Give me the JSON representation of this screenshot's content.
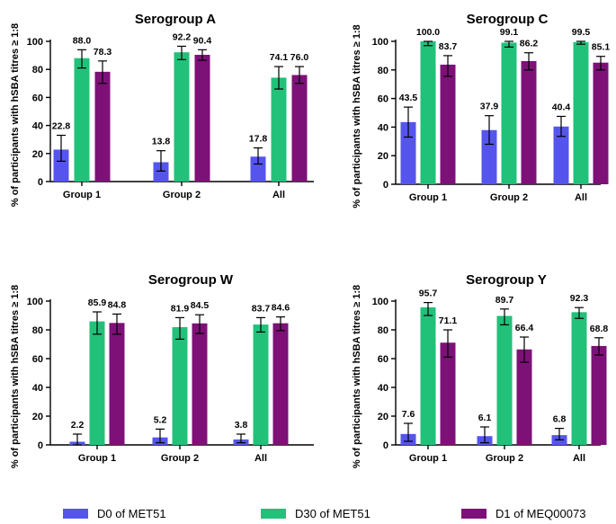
{
  "y_axis_label": "% of participants with hSBA titres ≥ 1:8",
  "legend": [
    {
      "label": "D0 of MET51",
      "color": "#5555ee"
    },
    {
      "label": "D30 of MET51",
      "color": "#22c17a"
    },
    {
      "label": "D1 of MEQ00073",
      "color": "#7d1178"
    }
  ],
  "chart_data": [
    {
      "type": "bar",
      "title": "Serogroup A",
      "categories": [
        "Group 1",
        "Group 2",
        "All"
      ],
      "ylim": [
        0,
        100
      ],
      "yticks": [
        0,
        20,
        40,
        60,
        80,
        100
      ],
      "series": [
        {
          "name": "D0 of MET51",
          "values": [
            22.8,
            13.8,
            17.8
          ],
          "labels": [
            "22.8",
            "13.8",
            "17.8"
          ],
          "err_low": [
            14.5,
            7.5,
            12.5
          ],
          "err_high": [
            33.0,
            22.0,
            24.0
          ]
        },
        {
          "name": "D30 of MET51",
          "values": [
            88.0,
            92.2,
            74.1
          ],
          "labels": [
            "88.0",
            "92.2",
            "74.1"
          ],
          "err_low": [
            81.0,
            87.0,
            66.0
          ],
          "err_high": [
            94.0,
            96.5,
            82.0
          ]
        },
        {
          "name": "D1 of MEQ00073",
          "values": [
            78.3,
            90.4,
            76.0
          ],
          "labels": [
            "78.3",
            "90.4",
            "76.0"
          ],
          "err_low": [
            70.0,
            86.5,
            70.0
          ],
          "err_high": [
            86.0,
            94.0,
            82.0
          ]
        }
      ]
    },
    {
      "type": "bar",
      "title": "Serogroup C",
      "categories": [
        "Group 1",
        "Group 2",
        "All"
      ],
      "ylim": [
        0,
        100
      ],
      "yticks": [
        0,
        20,
        40,
        60,
        80,
        100
      ],
      "series": [
        {
          "name": "D0 of MET51",
          "values": [
            43.5,
            37.9,
            40.4
          ],
          "labels": [
            "43.5",
            "37.9",
            "40.4"
          ],
          "err_low": [
            33.0,
            28.0,
            33.5
          ],
          "err_high": [
            54.0,
            48.0,
            47.5
          ]
        },
        {
          "name": "D30 of MET51",
          "values": [
            100.0,
            99.1,
            99.5
          ],
          "labels": [
            "100.0",
            "99.1",
            "99.5"
          ],
          "err_low": [
            97.0,
            96.0,
            98.0
          ],
          "err_high": [
            100.0,
            100.0,
            100.0
          ]
        },
        {
          "name": "D1 of MEQ00073",
          "values": [
            83.7,
            86.2,
            85.1
          ],
          "labels": [
            "83.7",
            "86.2",
            "85.1"
          ],
          "err_low": [
            75.5,
            80.0,
            80.0
          ],
          "err_high": [
            90.0,
            92.0,
            89.5
          ]
        }
      ]
    },
    {
      "type": "bar",
      "title": "Serogroup W",
      "categories": [
        "Group 1",
        "Group 2",
        "All"
      ],
      "ylim": [
        0,
        100
      ],
      "yticks": [
        0,
        20,
        40,
        60,
        80,
        100
      ],
      "series": [
        {
          "name": "D0 of MET51",
          "values": [
            2.2,
            5.2,
            3.8
          ],
          "labels": [
            "2.2",
            "5.2",
            "3.8"
          ],
          "err_low": [
            0.0,
            1.5,
            1.5
          ],
          "err_high": [
            7.5,
            11.0,
            7.5
          ]
        },
        {
          "name": "D30 of MET51",
          "values": [
            85.9,
            81.9,
            83.7
          ],
          "labels": [
            "85.9",
            "81.9",
            "83.7"
          ],
          "err_low": [
            77.0,
            73.5,
            78.5
          ],
          "err_high": [
            92.5,
            88.5,
            88.5
          ]
        },
        {
          "name": "D1 of MEQ00073",
          "values": [
            84.8,
            84.5,
            84.6
          ],
          "labels": [
            "84.8",
            "84.5",
            "84.6"
          ],
          "err_low": [
            77.0,
            77.5,
            79.5
          ],
          "err_high": [
            91.0,
            90.5,
            89.0
          ]
        }
      ]
    },
    {
      "type": "bar",
      "title": "Serogroup Y",
      "categories": [
        "Group 1",
        "Group 2",
        "All"
      ],
      "ylim": [
        0,
        100
      ],
      "yticks": [
        0,
        20,
        40,
        60,
        80,
        100
      ],
      "series": [
        {
          "name": "D0 of MET51",
          "values": [
            7.6,
            6.1,
            6.8
          ],
          "labels": [
            "7.6",
            "6.1",
            "6.8"
          ],
          "err_low": [
            2.5,
            1.5,
            3.5
          ],
          "err_high": [
            15.0,
            12.5,
            11.5
          ]
        },
        {
          "name": "D30 of MET51",
          "values": [
            95.7,
            89.7,
            92.3
          ],
          "labels": [
            "95.7",
            "89.7",
            "92.3"
          ],
          "err_low": [
            90.0,
            83.5,
            88.0
          ],
          "err_high": [
            99.0,
            94.5,
            95.5
          ]
        },
        {
          "name": "D1 of MEQ00073",
          "values": [
            71.1,
            66.4,
            68.8
          ],
          "labels": [
            "71.1",
            "66.4",
            "68.8"
          ],
          "err_low": [
            61.0,
            57.5,
            62.5
          ],
          "err_high": [
            80.0,
            75.0,
            74.5
          ]
        }
      ]
    }
  ]
}
